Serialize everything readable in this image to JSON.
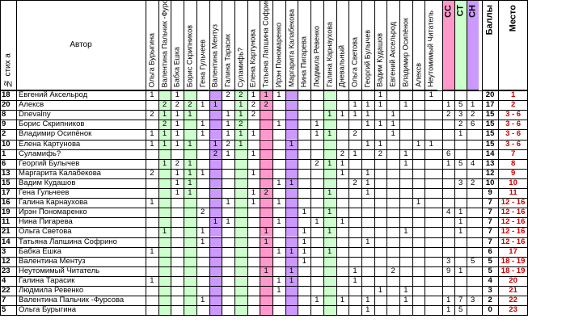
{
  "headers": {
    "num": "№ стих а",
    "author": "Автор",
    "voters": [
      "Ольга Бурыгина",
      "Валентина Пальчик -Фурсова",
      "Бабка Ешка",
      "Борис Скрипников",
      "Гена Гульчеев",
      "Валентина Ментуз",
      "Галина Тарасик",
      "Суламифь?",
      "Елена Картунова",
      "Татьяна Лапшина Софрино",
      "Ирэн Пономаренко",
      "Маргарита Калабекова",
      "Нина Пигарева",
      "Людмила Ревенко",
      "Галина Карнаухова",
      "Дневальный",
      "Ольга Светова",
      "Георгий Булычев",
      "Вадим Кудашов",
      "Евгений Аксельрод",
      "Владимир Осипёнок",
      "Алексв",
      "Неутомимый Читатель"
    ],
    "cc": "СС",
    "ct": "СТ",
    "ch": "СН",
    "score": "Баллы",
    "place": "Место"
  },
  "rows": [
    {
      "num": "18",
      "author": "Евгений Аксельрод",
      "votes": {
        "0": "1",
        "2": "1",
        "5": "",
        "6": "2",
        "7": "2",
        "8": "1",
        "9": "1",
        "10": "1",
        "18": "1",
        "22": "1"
      },
      "cc": "",
      "ct": "",
      "ch": "",
      "score": "20",
      "place": "1"
    },
    {
      "num": "20",
      "author": "Алексв",
      "votes": {
        "1": "2",
        "2": "2",
        "3": "2",
        "4": "1",
        "5": "1",
        "7": "1",
        "8": "2",
        "9": "2",
        "16": "1",
        "17": "1",
        "18": "1",
        "20": "1"
      },
      "cc": "1",
      "ct": "5",
      "ch": "1",
      "score": "17",
      "place": "2"
    },
    {
      "num": "8",
      "author": "Dnevalny",
      "votes": {
        "0": "2",
        "1": "1",
        "2": "1",
        "3": "1",
        "6": "1",
        "7": "1",
        "8": "2",
        "14": "1",
        "15": "1",
        "16": "1",
        "17": "1",
        "19": "1"
      },
      "cc": "2",
      "ct": "3",
      "ch": "2",
      "score": "15",
      "place": "3 - 6"
    },
    {
      "num": "9",
      "author": "Борис Скрипников",
      "votes": {
        "1": "2",
        "2": "1",
        "4": "1",
        "6": "1",
        "7": "2",
        "10": "1",
        "13": "1",
        "17": "1",
        "18": "1",
        "19": "1"
      },
      "cc": "",
      "ct": "2",
      "ch": "6",
      "score": "15",
      "place": "3 - 6"
    },
    {
      "num": "2",
      "author": "Владимир Осипёнок",
      "votes": {
        "0": "1",
        "1": "1",
        "2": "1",
        "4": "1",
        "6": "1",
        "7": "1",
        "8": "1",
        "13": "1",
        "14": "1",
        "16": "2",
        "19": "1"
      },
      "cc": "",
      "ct": "1",
      "ch": "",
      "score": "15",
      "place": "3 - 6"
    },
    {
      "num": "10",
      "author": "Елена Картунова",
      "votes": {
        "0": "1",
        "1": "1",
        "2": "1",
        "3": "1",
        "5": "1",
        "6": "2",
        "7": "1",
        "11": "1",
        "17": "1",
        "18": "1",
        "21": "1",
        "22": "1"
      },
      "cc": "",
      "ct": "",
      "ch": "",
      "score": "15",
      "place": "3 - 6"
    },
    {
      "num": "1",
      "author": "Суламифь?",
      "votes": {
        "5": "2",
        "6": "1",
        "8": "1",
        "15": "2",
        "16": "1",
        "18": "2",
        "20": "1"
      },
      "cc": "6",
      "ct": "",
      "ch": "",
      "score": "14",
      "place": "7"
    },
    {
      "num": "6",
      "author": "Георгий Булычев",
      "votes": {
        "1": "1",
        "2": "2",
        "3": "1",
        "13": "2",
        "14": "1",
        "15": "1",
        "20": "1"
      },
      "cc": "1",
      "ct": "5",
      "ch": "4",
      "score": "13",
      "place": "8"
    },
    {
      "num": "13",
      "author": "Маргарита Калабекова",
      "votes": {
        "0": "2",
        "2": "1",
        "3": "1",
        "4": "1",
        "8": "1",
        "15": "1",
        "17": "1"
      },
      "cc": "",
      "ct": "",
      "ch": "",
      "score": "12",
      "place": "9"
    },
    {
      "num": "15",
      "author": "Вадим Кудашов",
      "votes": {
        "2": "1",
        "3": "1",
        "10": "1",
        "11": "1",
        "16": "2",
        "17": "1"
      },
      "cc": "",
      "ct": "3",
      "ch": "2",
      "score": "10",
      "place": "10"
    },
    {
      "num": "17",
      "author": "Гена Гульчеев",
      "votes": {
        "2": "1",
        "3": "1",
        "8": "1",
        "9": "2",
        "14": "1",
        "17": "1"
      },
      "cc": "",
      "ct": "",
      "ch": "",
      "score": "9",
      "place": "11"
    },
    {
      "num": "16",
      "author": "Галина Карнаухова",
      "votes": {
        "0": "1",
        "6": "1",
        "8": "1",
        "10": "1",
        "21": "1"
      },
      "cc": "",
      "ct": "",
      "ch": "",
      "score": "7",
      "place": "12 - 16"
    },
    {
      "num": "19",
      "author": "Ирэн Пономаренко",
      "votes": {
        "4": "2",
        "12": "1",
        "14": "1"
      },
      "cc": "4",
      "ct": "1",
      "ch": "",
      "score": "7",
      "place": "12 - 16"
    },
    {
      "num": "11",
      "author": "Нина Пигарева",
      "votes": {
        "5": "1",
        "6": "1",
        "10": "1",
        "13": "1",
        "15": "1"
      },
      "cc": "",
      "ct": "1",
      "ch": "",
      "score": "7",
      "place": "12 - 16"
    },
    {
      "num": "21",
      "author": "Ольга Светова",
      "votes": {
        "1": "1",
        "4": "1",
        "9": "1",
        "12": "1",
        "14": "1",
        "20": "1"
      },
      "cc": "",
      "ct": "1",
      "ch": "",
      "score": "7",
      "place": "12 - 16"
    },
    {
      "num": "14",
      "author": "Татьяна Лапшина Софрино",
      "votes": {
        "4": "1",
        "9": "1",
        "12": "1",
        "17": "1"
      },
      "cc": "",
      "ct": "",
      "ch": "",
      "score": "7",
      "place": "12 - 16"
    },
    {
      "num": "3",
      "author": "Бабка Ёшка",
      "votes": {
        "0": "1",
        "10": "1",
        "11": "1",
        "12": "1",
        "14": "1"
      },
      "cc": "",
      "ct": "",
      "ch": "",
      "score": "6",
      "place": "17"
    },
    {
      "num": "12",
      "author": "Валентина Ментуз",
      "votes": {
        "12": "1"
      },
      "cc": "3",
      "ct": "",
      "ch": "5",
      "score": "5",
      "place": "18 - 19"
    },
    {
      "num": "23",
      "author": "Неутомимый Читатель",
      "votes": {
        "9": "1",
        "11": "1",
        "16": "1",
        "19": "2"
      },
      "cc": "9",
      "ct": "1",
      "ch": "",
      "score": "5",
      "place": "18 - 19"
    },
    {
      "num": "4",
      "author": "Галина Тарасик",
      "votes": {
        "0": "1",
        "10": "1",
        "11": "1",
        "16": "1"
      },
      "cc": "",
      "ct": "",
      "ch": "",
      "score": "4",
      "place": "20"
    },
    {
      "num": "22",
      "author": "Людмила Ревенко",
      "votes": {
        "10": "1",
        "18": "1",
        "20": "1"
      },
      "cc": "",
      "ct": "",
      "ch": "",
      "score": "3",
      "place": "21"
    },
    {
      "num": "7",
      "author": "Валентина Пальчик -Фурсова",
      "votes": {
        "4": "1",
        "13": "1",
        "15": "1",
        "17": "1",
        "20": "1"
      },
      "cc": "1",
      "ct": "7",
      "ch": "3",
      "score": "2",
      "place": "22"
    },
    {
      "num": "5",
      "author": "Ольга Бурыгина",
      "votes": {
        "17": "1"
      },
      "cc": "1",
      "ct": "5",
      "ch": "",
      "score": "0",
      "place": "23"
    }
  ],
  "colors": {
    "green": "#ccffcc",
    "pink": "#ff99cc",
    "violet": "#cc99ff",
    "gray": "#c0c0c0",
    "cc_col": "#ff99cc",
    "ct_col": "#ccffcc",
    "ch_col": "#cc99ff",
    "place_red": "#cc0000"
  }
}
